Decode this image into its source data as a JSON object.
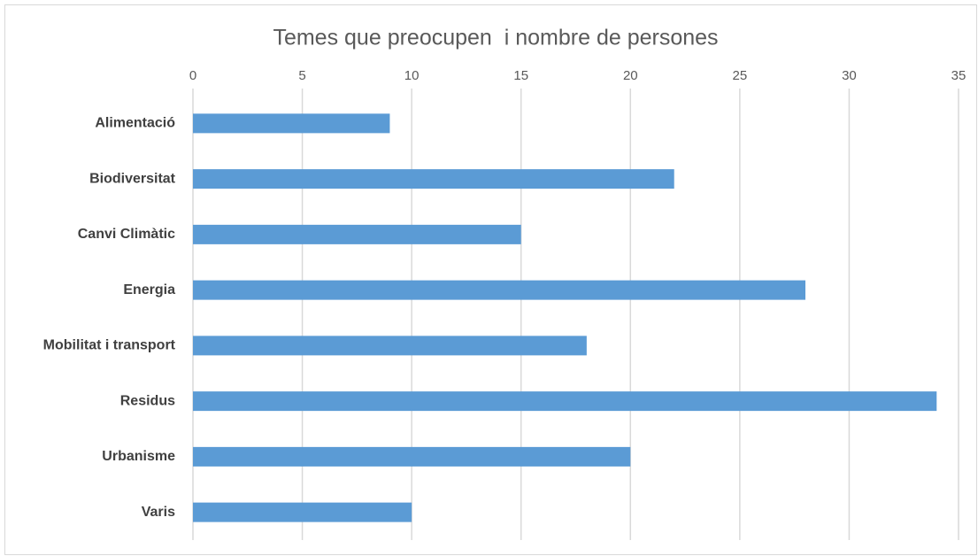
{
  "chart_data": {
    "type": "barh",
    "title": "Temes que preocupen  i nombre de persones",
    "categories": [
      "Alimentació",
      "Biodiversitat",
      "Canvi Climàtic",
      "Energia",
      "Mobilitat i transport",
      "Residus",
      "Urbanisme",
      "Varis"
    ],
    "values": [
      9,
      22,
      15,
      28,
      18,
      34,
      20,
      10
    ],
    "color": "#5b9bd5",
    "xlim": [
      0,
      35
    ],
    "xticks": [
      0,
      5,
      10,
      15,
      20,
      25,
      30,
      35
    ],
    "grid": true
  }
}
